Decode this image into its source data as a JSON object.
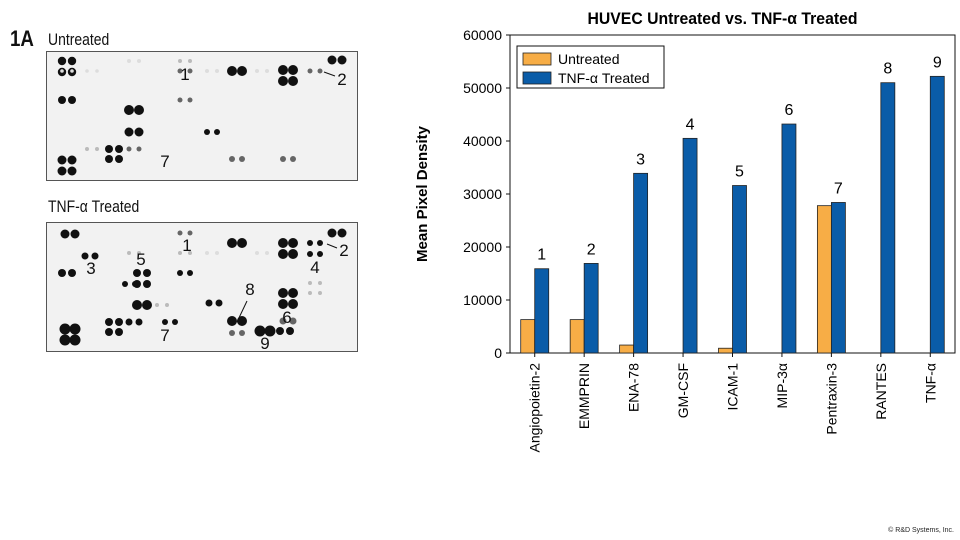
{
  "figure": {
    "label": "1A",
    "copyright": "© R&D Systems, Inc."
  },
  "blots": [
    {
      "title": "Untreated",
      "annotations": [
        "1",
        "2",
        "7"
      ]
    },
    {
      "title": "TNF-α Treated",
      "annotations": [
        "1",
        "2",
        "3",
        "4",
        "5",
        "6",
        "7",
        "8",
        "9"
      ]
    }
  ],
  "chart_data": {
    "type": "bar",
    "title": "HUVEC Untreated vs. TNF-α Treated",
    "xlabel": "",
    "ylabel": "Mean Pixel Density",
    "ylim": [
      0,
      60000
    ],
    "yticks": [
      "0",
      "10000",
      "20000",
      "30000",
      "40000",
      "50000",
      "60000"
    ],
    "grid": false,
    "legend_position": "top-left",
    "categories": [
      "Angiopoietin-2",
      "EMMPRIN",
      "ENA-78",
      "GM-CSF",
      "ICAM-1",
      "MIP-3α",
      "Pentraxin-3",
      "RANTES",
      "TNF-α"
    ],
    "series": [
      {
        "name": "Untreated",
        "color": "#f7ad46",
        "values": [
          6300,
          6300,
          1500,
          0,
          900,
          0,
          27800,
          0,
          0
        ]
      },
      {
        "name": "TNF-α Treated",
        "color": "#0a5ca8",
        "values": [
          15900,
          16900,
          33900,
          40500,
          31600,
          43200,
          28400,
          51000,
          52200
        ]
      }
    ],
    "bar_labels": [
      "1",
      "2",
      "3",
      "4",
      "5",
      "6",
      "7",
      "8",
      "9"
    ]
  }
}
